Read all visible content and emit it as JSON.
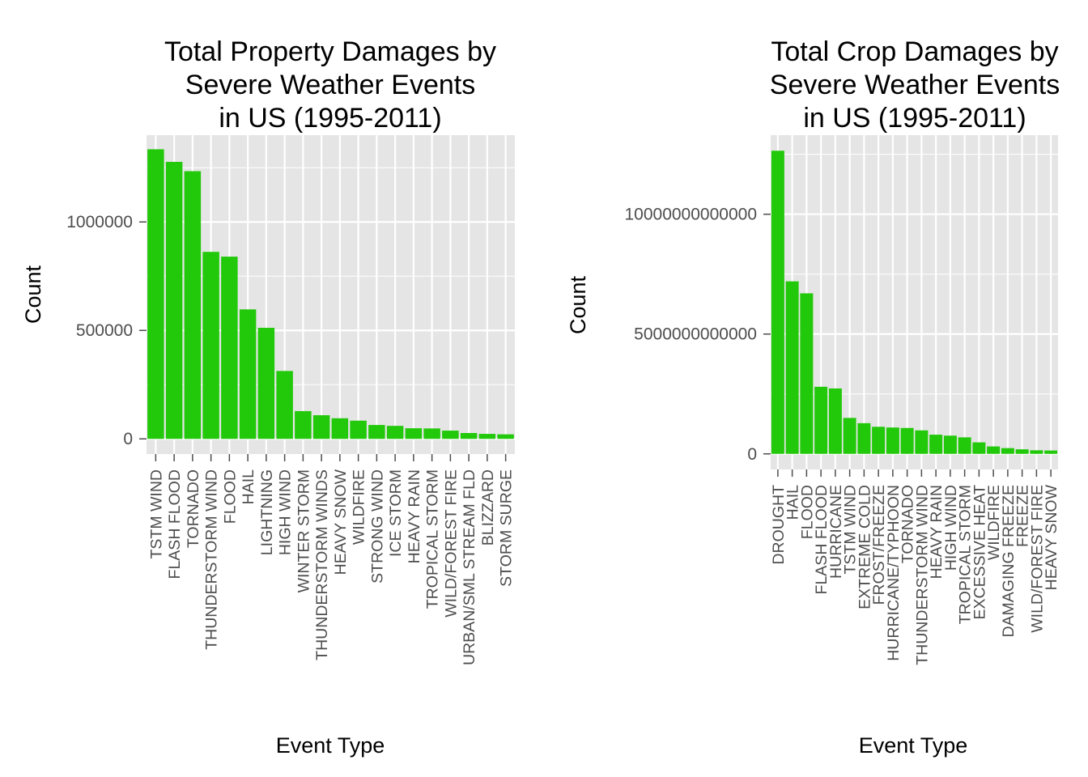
{
  "chart_data": [
    {
      "type": "bar",
      "title": [
        "Total Property Damages by",
        "Severe Weather Events",
        "in US (1995-2011)"
      ],
      "xlabel": "Event Type",
      "ylabel": "Count",
      "categories": [
        "TSTM WIND",
        "FLASH FLOOD",
        "TORNADO",
        "THUNDERSTORM WIND",
        "FLOOD",
        "HAIL",
        "LIGHTNING",
        "HIGH WIND",
        "WINTER STORM",
        "THUNDERSTORM WINDS",
        "HEAVY SNOW",
        "WILDFIRE",
        "STRONG WIND",
        "ICE STORM",
        "HEAVY RAIN",
        "TROPICAL STORM",
        "WILD/FOREST FIRE",
        "URBAN/SML STREAM FLD",
        "BLIZZARD",
        "STORM SURGE"
      ],
      "values": [
        1335000,
        1277000,
        1234000,
        862000,
        840000,
        597000,
        512000,
        313000,
        128000,
        109000,
        95000,
        84000,
        64000,
        60000,
        49000,
        48000,
        38000,
        27000,
        23000,
        21000
      ],
      "ylim": [
        -70000,
        1400000
      ],
      "yticks": [
        0,
        500000,
        1000000
      ],
      "ytick_labels": [
        "0",
        "500000",
        "1000000"
      ],
      "bar_color": "#22c80a",
      "panel_color": "#e5e5e5",
      "grid": true
    },
    {
      "type": "bar",
      "title": [
        "Total Crop Damages by",
        "Severe Weather Events",
        "in US (1995-2011)"
      ],
      "xlabel": "Event Type",
      "ylabel": "Count",
      "categories": [
        "DROUGHT",
        "HAIL",
        "FLOOD",
        "FLASH FLOOD",
        "HURRICANE",
        "TSTM WIND",
        "EXTREME COLD",
        "FROST/FREEZE",
        "HURRICANE/TYPHOON",
        "TORNADO",
        "THUNDERSTORM WIND",
        "HEAVY RAIN",
        "HIGH WIND",
        "TROPICAL STORM",
        "EXCESSIVE HEAT",
        "WILDFIRE",
        "DAMAGING FREEZE",
        "FREEZE",
        "WILD/FOREST FIRE",
        "HEAVY SNOW"
      ],
      "values": [
        12650000000000,
        7200000000000,
        6700000000000,
        2800000000000,
        2730000000000,
        1500000000000,
        1280000000000,
        1130000000000,
        1100000000000,
        1080000000000,
        980000000000,
        800000000000,
        760000000000,
        690000000000,
        480000000000,
        310000000000,
        240000000000,
        190000000000,
        150000000000,
        140000000000
      ],
      "ylim": [
        -650000000000,
        13300000000000
      ],
      "yticks": [
        0,
        5000000000000,
        10000000000000
      ],
      "ytick_labels": [
        "0",
        "5000000000000",
        "10000000000000"
      ],
      "bar_color": "#22c80a",
      "panel_color": "#e5e5e5",
      "grid": true
    }
  ]
}
